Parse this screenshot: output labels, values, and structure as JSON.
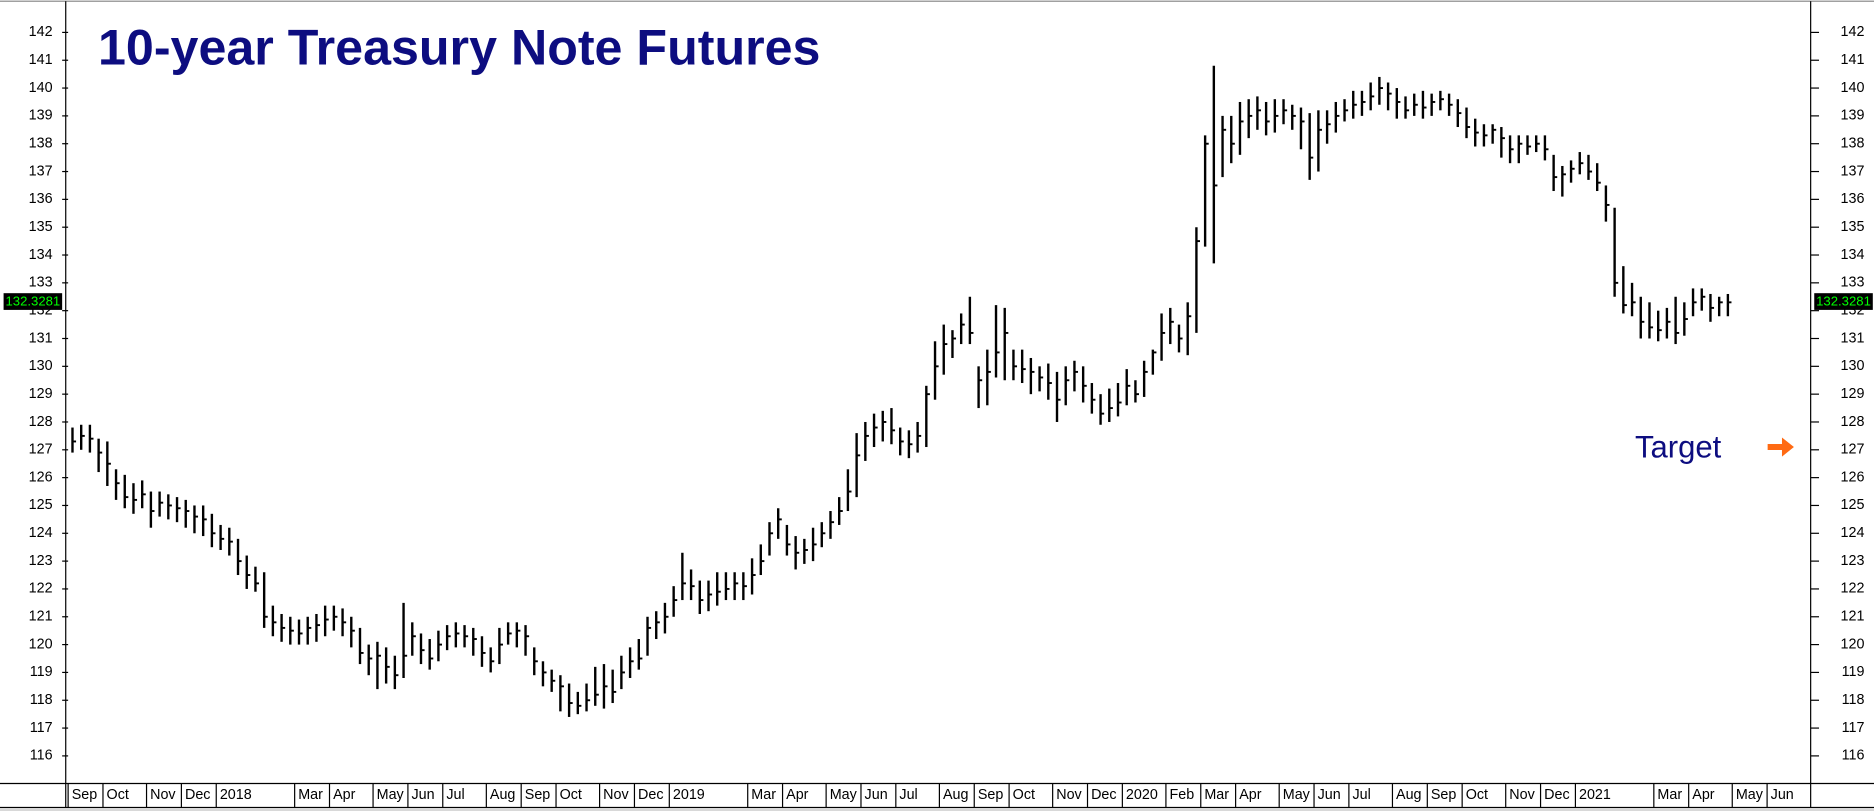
{
  "chart_data": {
    "type": "ohlc",
    "title": "10-year Treasury Note Futures",
    "color": "#000000",
    "categories": [
      "Sep",
      null,
      null,
      null,
      "Oct",
      null,
      null,
      null,
      null,
      "Nov",
      null,
      null,
      null,
      "Dec",
      null,
      null,
      null,
      "2018",
      null,
      null,
      null,
      null,
      null,
      null,
      null,
      null,
      "Mar",
      null,
      null,
      null,
      "Apr",
      null,
      null,
      null,
      null,
      "May",
      null,
      null,
      null,
      "Jun",
      null,
      null,
      null,
      "Jul",
      null,
      null,
      null,
      null,
      "Aug",
      null,
      null,
      null,
      "Sep",
      null,
      null,
      null,
      "Oct",
      null,
      null,
      null,
      null,
      "Nov",
      null,
      null,
      null,
      "Dec",
      null,
      null,
      null,
      "2019",
      null,
      null,
      null,
      null,
      null,
      null,
      null,
      null,
      "Mar",
      null,
      null,
      null,
      "Apr",
      null,
      null,
      null,
      null,
      "May",
      null,
      null,
      null,
      "Jun",
      null,
      null,
      null,
      "Jul",
      null,
      null,
      null,
      null,
      "Aug",
      null,
      null,
      null,
      "Sep",
      null,
      null,
      null,
      "Oct",
      null,
      null,
      null,
      null,
      "Nov",
      null,
      null,
      null,
      "Dec",
      null,
      null,
      null,
      "2020",
      null,
      null,
      null,
      null,
      "Feb",
      null,
      null,
      null,
      "Mar",
      null,
      null,
      null,
      "Apr",
      null,
      null,
      null,
      null,
      "May",
      null,
      null,
      null,
      "Jun",
      null,
      null,
      null,
      "Jul",
      null,
      null,
      null,
      null,
      "Aug",
      null,
      null,
      null,
      "Sep",
      null,
      null,
      null,
      "Oct",
      null,
      null,
      null,
      null,
      "Nov",
      null,
      null,
      null,
      "Dec",
      null,
      null,
      null,
      "2021",
      null,
      null,
      null,
      null,
      null,
      null,
      null,
      null,
      "Mar",
      null,
      null,
      null,
      "Apr",
      null,
      null,
      null,
      null,
      "May",
      null,
      null,
      null,
      "Jun",
      null,
      null,
      null,
      null
    ],
    "high": [
      127.8,
      127.9,
      127.9,
      127.4,
      127.3,
      126.3,
      126.1,
      125.8,
      125.9,
      125.5,
      125.5,
      125.4,
      125.3,
      125.2,
      125.0,
      125.0,
      124.7,
      124.3,
      124.2,
      123.8,
      123.2,
      122.8,
      122.6,
      121.4,
      121.1,
      121.0,
      120.9,
      121.0,
      121.1,
      121.4,
      121.4,
      121.3,
      121.0,
      120.6,
      120.0,
      120.1,
      119.9,
      119.6,
      121.5,
      120.8,
      120.4,
      120.2,
      120.5,
      120.7,
      120.8,
      120.7,
      120.6,
      120.3,
      119.9,
      120.6,
      120.8,
      120.8,
      120.7,
      119.9,
      119.4,
      119.1,
      118.9,
      118.6,
      118.3,
      118.6,
      119.2,
      119.3,
      119.1,
      119.6,
      119.9,
      120.2,
      121.0,
      121.2,
      121.5,
      122.1,
      123.3,
      122.7,
      122.3,
      122.3,
      122.6,
      122.6,
      122.6,
      122.6,
      123.1,
      123.6,
      124.4,
      124.9,
      124.3,
      123.9,
      123.8,
      124.2,
      124.4,
      124.8,
      125.3,
      126.3,
      127.6,
      128.0,
      128.3,
      128.4,
      128.5,
      127.8,
      127.7,
      128.0,
      129.3,
      130.9,
      131.5,
      131.3,
      131.9,
      132.5,
      130.0,
      130.6,
      132.2,
      132.1,
      130.6,
      130.6,
      130.3,
      130.0,
      130.1,
      129.8,
      130.0,
      130.2,
      130.0,
      129.4,
      129.0,
      129.2,
      129.4,
      129.9,
      129.5,
      130.2,
      130.6,
      131.9,
      132.1,
      131.5,
      132.3,
      135.0,
      138.3,
      140.8,
      139.0,
      139.0,
      139.5,
      139.6,
      139.7,
      139.5,
      139.6,
      139.6,
      139.4,
      139.3,
      139.1,
      139.2,
      139.2,
      139.5,
      139.6,
      139.9,
      139.9,
      140.2,
      140.4,
      140.2,
      140.0,
      139.7,
      139.8,
      139.9,
      139.8,
      139.9,
      139.8,
      139.6,
      139.3,
      138.9,
      138.7,
      138.7,
      138.6,
      138.3,
      138.3,
      138.3,
      138.3,
      138.3,
      137.6,
      137.2,
      137.4,
      137.7,
      137.6,
      137.3,
      136.5,
      135.7,
      133.6,
      133.0,
      132.5,
      132.3,
      132.0,
      132.1,
      132.5,
      132.3,
      132.8,
      132.8,
      132.6,
      132.5,
      132.6,
      null,
      null,
      null,
      null,
      null,
      null,
      null,
      null,
      null
    ],
    "low": [
      126.9,
      127.0,
      126.9,
      126.2,
      125.7,
      125.2,
      124.9,
      124.7,
      124.9,
      124.2,
      124.6,
      124.5,
      124.4,
      124.2,
      124.0,
      123.9,
      123.5,
      123.4,
      123.2,
      122.5,
      122.0,
      121.9,
      120.6,
      120.3,
      120.1,
      120.0,
      120.0,
      120.0,
      120.1,
      120.3,
      120.5,
      120.3,
      119.9,
      119.3,
      118.9,
      118.4,
      118.6,
      118.4,
      118.8,
      119.6,
      119.3,
      119.1,
      119.4,
      119.8,
      119.9,
      119.9,
      119.6,
      119.2,
      119.0,
      119.3,
      120.0,
      119.9,
      119.6,
      118.9,
      118.5,
      118.3,
      117.6,
      117.4,
      117.5,
      117.6,
      117.8,
      117.7,
      117.9,
      118.4,
      118.8,
      119.1,
      119.6,
      120.2,
      120.4,
      121.0,
      121.6,
      121.6,
      121.1,
      121.2,
      121.4,
      121.6,
      121.6,
      121.6,
      121.8,
      122.5,
      123.2,
      123.8,
      123.2,
      122.7,
      122.9,
      123.0,
      123.5,
      123.8,
      124.3,
      124.8,
      125.3,
      126.6,
      127.1,
      127.3,
      127.2,
      126.8,
      126.7,
      126.9,
      127.1,
      128.8,
      129.7,
      130.3,
      130.8,
      130.8,
      128.5,
      128.6,
      129.6,
      129.5,
      129.5,
      129.4,
      129.0,
      129.1,
      128.8,
      128.0,
      128.6,
      129.1,
      128.7,
      128.3,
      127.9,
      128.0,
      128.2,
      128.6,
      128.7,
      128.9,
      129.7,
      130.2,
      130.8,
      130.5,
      130.4,
      131.2,
      134.3,
      133.7,
      136.8,
      137.3,
      137.6,
      138.2,
      138.5,
      138.3,
      138.4,
      138.7,
      138.5,
      137.8,
      136.7,
      137.0,
      138.0,
      138.4,
      138.8,
      138.9,
      139.0,
      139.2,
      139.4,
      139.2,
      138.9,
      138.9,
      139.0,
      138.9,
      139.0,
      139.2,
      139.0,
      138.6,
      138.2,
      137.9,
      137.9,
      138.0,
      137.5,
      137.3,
      137.3,
      137.6,
      137.7,
      137.4,
      136.3,
      136.1,
      136.6,
      136.9,
      136.7,
      136.3,
      135.2,
      132.5,
      131.9,
      131.8,
      131.0,
      131.0,
      130.9,
      131.0,
      130.8,
      131.1,
      131.8,
      132.0,
      131.6,
      131.8,
      131.8,
      null,
      null,
      null,
      null,
      null,
      null,
      null,
      null,
      null
    ],
    "close": [
      127.3,
      127.5,
      127.4,
      126.9,
      126.5,
      125.8,
      125.3,
      125.2,
      125.4,
      124.8,
      125.1,
      125.0,
      124.9,
      124.8,
      124.6,
      124.5,
      124.0,
      123.8,
      123.7,
      123.0,
      122.5,
      122.2,
      121.0,
      120.8,
      120.6,
      120.5,
      120.4,
      120.6,
      120.7,
      120.9,
      121.0,
      120.8,
      120.5,
      119.7,
      119.5,
      119.6,
      119.2,
      118.9,
      119.6,
      120.3,
      119.8,
      119.5,
      120.0,
      120.3,
      120.4,
      120.3,
      120.2,
      119.7,
      119.4,
      120.0,
      120.4,
      120.5,
      120.3,
      119.4,
      119.0,
      118.7,
      118.5,
      117.9,
      117.8,
      118.0,
      118.2,
      118.5,
      118.3,
      119.0,
      119.4,
      119.5,
      120.6,
      120.8,
      121.0,
      121.6,
      122.2,
      122.1,
      121.6,
      121.8,
      121.9,
      122.0,
      122.2,
      122.1,
      122.5,
      123.0,
      124.0,
      124.5,
      123.6,
      123.3,
      123.4,
      123.6,
      124.0,
      124.4,
      124.8,
      125.5,
      126.8,
      127.5,
      127.8,
      128.0,
      127.7,
      127.3,
      127.2,
      127.5,
      129.0,
      130.0,
      130.8,
      131.0,
      131.5,
      131.2,
      129.5,
      129.8,
      130.5,
      131.2,
      130.0,
      129.9,
      129.8,
      129.6,
      129.4,
      128.8,
      129.5,
      129.8,
      129.3,
      128.8,
      128.3,
      128.5,
      128.7,
      129.3,
      129.0,
      129.8,
      130.5,
      131.2,
      131.6,
      131.0,
      131.8,
      134.5,
      138.0,
      136.5,
      138.5,
      138.0,
      138.8,
      139.0,
      139.2,
      138.8,
      139.0,
      139.2,
      139.0,
      138.8,
      137.5,
      138.5,
      138.7,
      139.0,
      139.2,
      139.4,
      139.5,
      139.7,
      140.0,
      139.8,
      139.5,
      139.2,
      139.4,
      139.3,
      139.5,
      139.6,
      139.4,
      139.1,
      138.6,
      138.4,
      138.3,
      138.5,
      138.2,
      137.8,
      138.0,
      137.9,
      138.0,
      137.8,
      136.8,
      136.9,
      137.1,
      137.3,
      137.0,
      136.6,
      135.8,
      133.0,
      132.2,
      132.3,
      131.6,
      131.4,
      131.3,
      131.6,
      131.2,
      131.7,
      132.3,
      132.5,
      132.1,
      132.3,
      132.3,
      null,
      null,
      null,
      null,
      null,
      null,
      null,
      null,
      null
    ],
    "ylim": [
      115.05,
      142.95
    ],
    "yticks": [
      116,
      117,
      118,
      119,
      120,
      121,
      122,
      123,
      124,
      125,
      126,
      127,
      128,
      129,
      130,
      131,
      132,
      133,
      134,
      135,
      136,
      137,
      138,
      139,
      140,
      141,
      142
    ],
    "last_price": 132.3281,
    "annotations": [
      {
        "text": "Target",
        "value": 127.1,
        "color": "#ff6a13"
      }
    ]
  }
}
